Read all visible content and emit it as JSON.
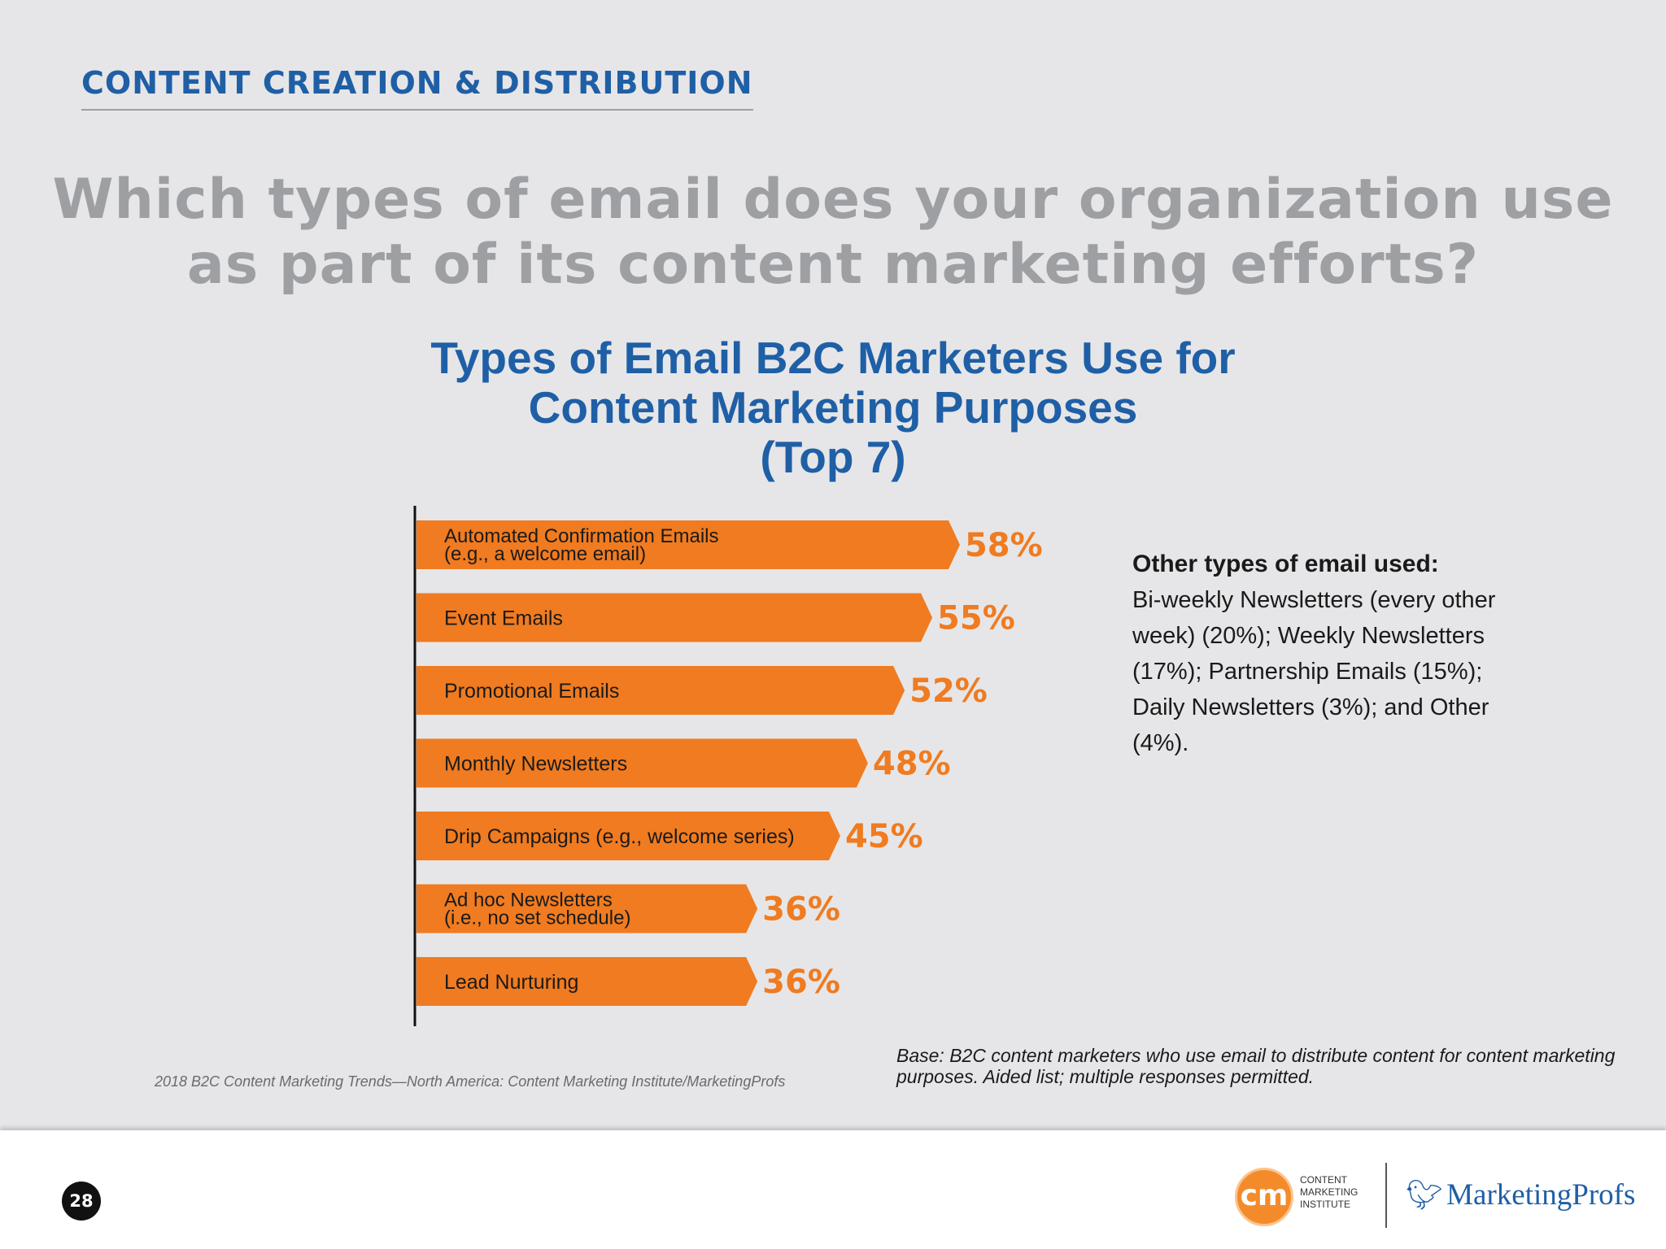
{
  "header": {
    "section_title": "CONTENT CREATION & DISTRIBUTION",
    "question_lines": [
      "Which types of email does your organization use",
      "as part of its content marketing efforts?"
    ]
  },
  "chart_data": {
    "type": "bar",
    "orientation": "horizontal",
    "title_lines": [
      "Types of Email B2C Marketers Use for",
      "Content Marketing Purposes",
      "(Top 7)"
    ],
    "categories": [
      "Automated Confirmation Emails (e.g., a welcome email)",
      "Event Emails",
      "Promotional Emails",
      "Monthly Newsletters",
      "Drip Campaigns (e.g., welcome series)",
      "Ad hoc Newsletters (i.e., no set schedule)",
      "Lead Nurturing"
    ],
    "category_label_lines": [
      [
        "Automated Confirmation Emails",
        "(e.g., a welcome email)"
      ],
      [
        "Event Emails"
      ],
      [
        "Promotional Emails"
      ],
      [
        "Monthly Newsletters"
      ],
      [
        "Drip Campaigns (e.g., welcome series)"
      ],
      [
        "Ad hoc Newsletters",
        "(i.e., no set schedule)"
      ],
      [
        "Lead Nurturing"
      ]
    ],
    "values": [
      58,
      55,
      52,
      48,
      45,
      36,
      36
    ],
    "value_labels": [
      "58%",
      "55%",
      "52%",
      "48%",
      "45%",
      "36%",
      "36%"
    ],
    "unit": "%",
    "bar_color": "#f07b20",
    "value_color": "#f07b20",
    "grid": false
  },
  "others": {
    "heading": "Other types of email used:",
    "lines": [
      "Bi-weekly Newsletters (every other",
      "week) (20%); Weekly Newsletters",
      "(17%); Partnership Emails (15%);",
      "Daily Newsletters (3%); and Other",
      "(4%)."
    ]
  },
  "source_note": "2018 B2C Content Marketing Trends—North America: Content Marketing Institute/MarketingProfs",
  "base_note_lines": [
    "Base: B2C content marketers who use email to distribute content for content marketing",
    "purposes. Aided list; multiple responses permitted."
  ],
  "footer": {
    "page_number": "28",
    "cmi_mark": "cm",
    "cmi_lines": [
      "CONTENT",
      "MARKETING",
      "INSTITUTE"
    ],
    "mp_name": "MarketingProfs"
  },
  "colors": {
    "accent_blue": "#1f5fa6",
    "question_gray": "#9d9fa3",
    "bar_orange": "#f07b20",
    "background": "#e6e6e8"
  }
}
